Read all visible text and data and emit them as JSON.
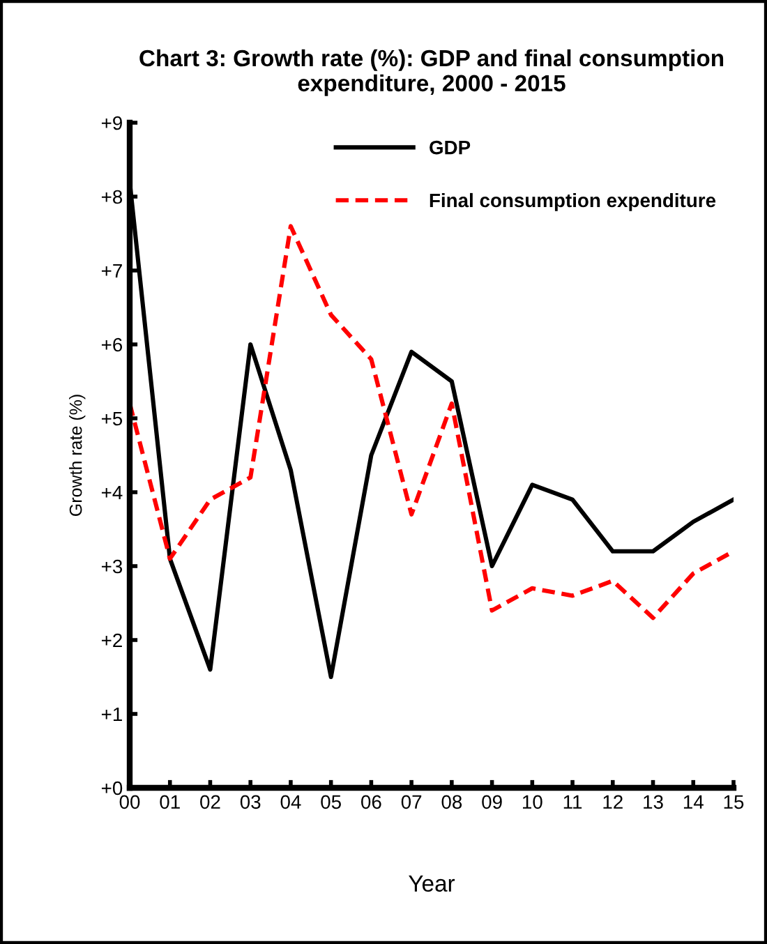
{
  "chart_data": {
    "type": "line",
    "title": "Chart 3: Growth rate (%): GDP and final consumption expenditure, 2000 - 2015",
    "xlabel": "Year",
    "ylabel": "Growth rate (%)",
    "categories": [
      "00",
      "01",
      "02",
      "03",
      "04",
      "05",
      "06",
      "07",
      "08",
      "09",
      "10",
      "11",
      "12",
      "13",
      "14",
      "15"
    ],
    "series": [
      {
        "name": "GDP",
        "color": "#000000",
        "line_style": "solid",
        "values": [
          8.2,
          3.1,
          1.6,
          6.0,
          4.3,
          1.5,
          4.5,
          5.9,
          5.5,
          3.0,
          4.1,
          3.9,
          3.2,
          3.2,
          3.6,
          3.9
        ]
      },
      {
        "name": "Final consumption expenditure",
        "color": "#ff0000",
        "line_style": "dashed",
        "values": [
          5.2,
          3.1,
          3.9,
          4.2,
          7.6,
          6.4,
          5.8,
          3.7,
          5.2,
          2.4,
          2.7,
          2.6,
          2.8,
          2.3,
          2.9,
          3.2
        ]
      }
    ],
    "ylim": [
      0,
      9
    ],
    "yticks": [
      {
        "value": 0,
        "label": "+0"
      },
      {
        "value": 1,
        "label": "+1"
      },
      {
        "value": 2,
        "label": "+2"
      },
      {
        "value": 3,
        "label": "+3"
      },
      {
        "value": 4,
        "label": "+4"
      },
      {
        "value": 5,
        "label": "+5"
      },
      {
        "value": 6,
        "label": "+6"
      },
      {
        "value": 7,
        "label": "+7"
      },
      {
        "value": 8,
        "label": "+8"
      },
      {
        "value": 9,
        "label": "+9"
      }
    ],
    "grid": false,
    "legend": "top right",
    "marker": "none"
  }
}
